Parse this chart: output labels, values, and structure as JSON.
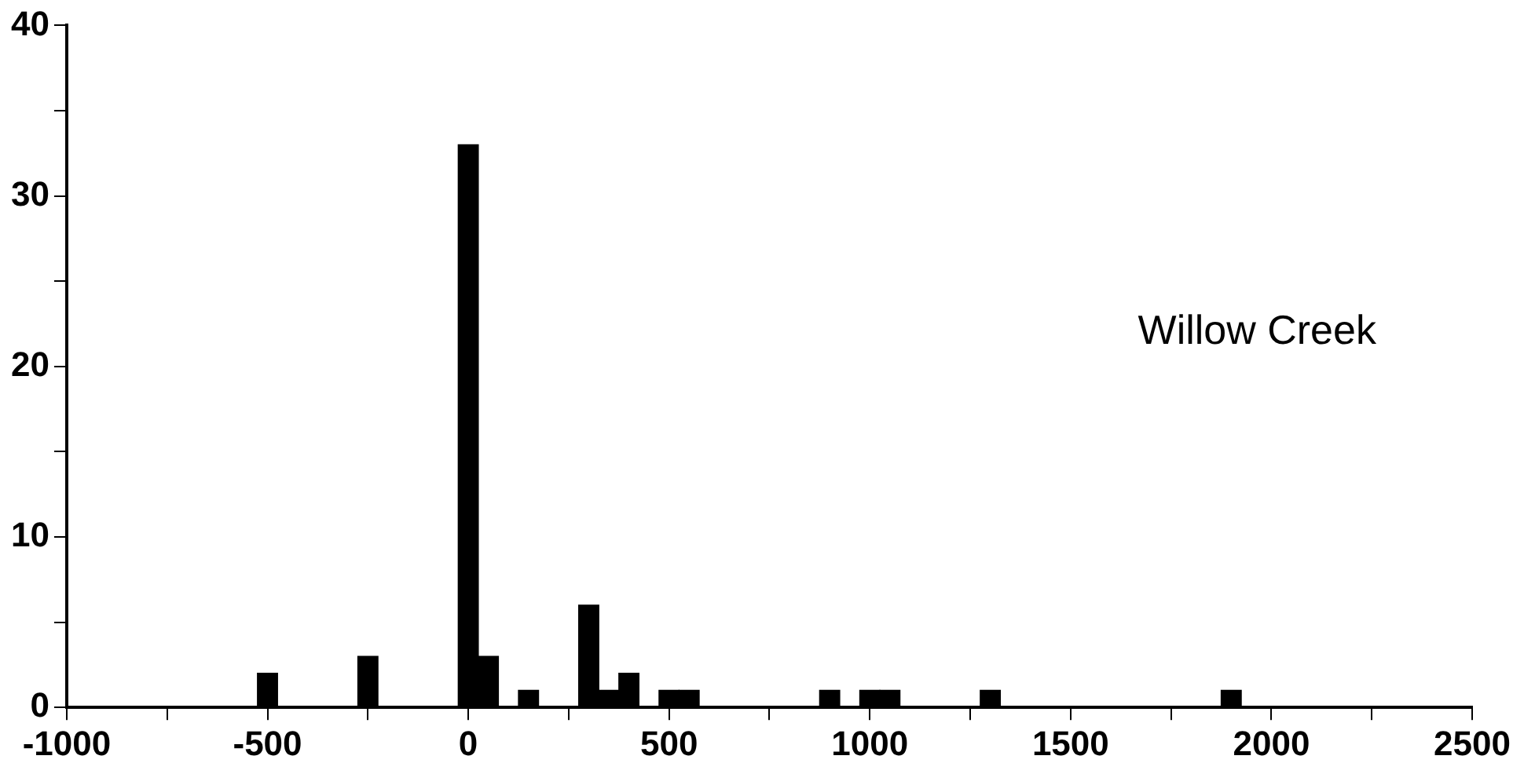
{
  "chart_data": {
    "type": "bar",
    "x": [
      -500,
      -250,
      0,
      50,
      150,
      300,
      350,
      400,
      500,
      550,
      900,
      1000,
      1050,
      1300,
      1900
    ],
    "values": [
      2,
      3,
      33,
      3,
      1,
      6,
      1,
      2,
      1,
      1,
      1,
      1,
      1,
      1,
      1
    ],
    "color": "#000000",
    "xlim": [
      -1000,
      2500
    ],
    "xticks": [
      -1000,
      {
        "value": -750,
        "label": null
      },
      -500,
      {
        "value": -250,
        "label": null
      },
      0,
      {
        "value": 250,
        "label": null
      },
      500,
      {
        "value": 750,
        "label": null
      },
      1000,
      {
        "value": 1250,
        "label": null
      },
      1500,
      {
        "value": 1750,
        "label": null
      },
      2000,
      {
        "value": 2250,
        "label": null
      },
      2500
    ],
    "ylim": [
      0,
      40
    ],
    "yticks": [
      0,
      {
        "value": 5,
        "label": null
      },
      10,
      {
        "value": 15,
        "label": null
      },
      20,
      {
        "value": 25,
        "label": null
      },
      30,
      {
        "value": 35,
        "label": null
      },
      40
    ],
    "grid": false,
    "legend": false,
    "annotations": [
      "Willow Creek"
    ]
  }
}
